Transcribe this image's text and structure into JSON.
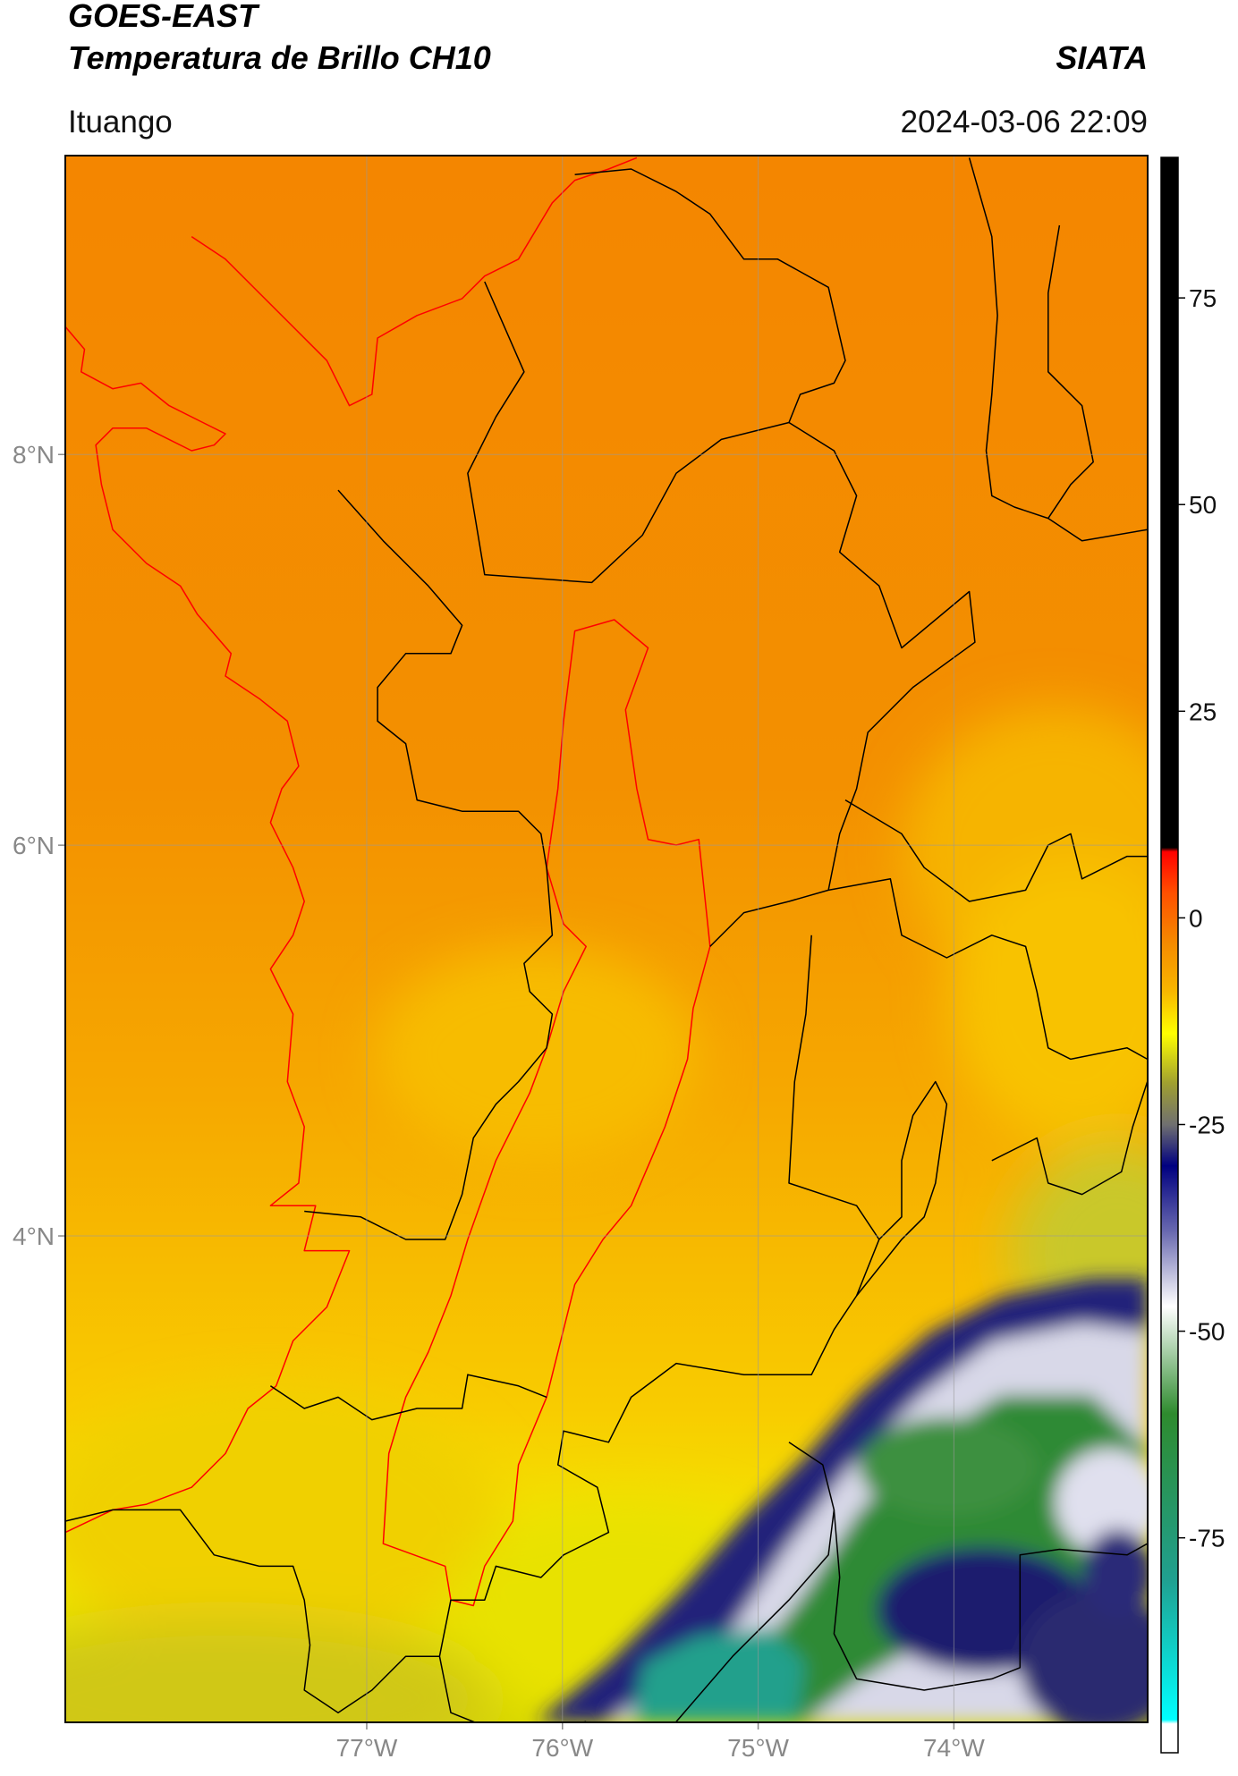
{
  "header": {
    "title_line1": "GOES-EAST",
    "title_line2": "Temperatura de Brillo CH10",
    "source": "SIATA",
    "location": "Ituango",
    "timestamp": "2024-03-06 22:09"
  },
  "map": {
    "xlim": [
      -78.54,
      -73.01
    ],
    "ylim": [
      1.51,
      9.53
    ],
    "xticks": [
      {
        "value": -77,
        "label": "77°W"
      },
      {
        "value": -76,
        "label": "76°W"
      },
      {
        "value": -75,
        "label": "75°W"
      },
      {
        "value": -74,
        "label": "74°W"
      }
    ],
    "yticks": [
      {
        "value": 8,
        "label": "8°N"
      },
      {
        "value": 6,
        "label": "6°N"
      },
      {
        "value": 4,
        "label": "4°N"
      }
    ],
    "grid": true
  },
  "colorbar": {
    "lim": [
      -101,
      92
    ],
    "ticks": [
      75,
      50,
      25,
      0,
      -25,
      -50,
      -75
    ],
    "stops": [
      {
        "value": 92,
        "color": "#000000"
      },
      {
        "value": 8.5,
        "color": "#000000"
      },
      {
        "value": 8,
        "color": "#ff0000"
      },
      {
        "value": 3,
        "color": "#ff5000"
      },
      {
        "value": -3,
        "color": "#f58a00"
      },
      {
        "value": -9,
        "color": "#f8b800"
      },
      {
        "value": -14,
        "color": "#ffff00"
      },
      {
        "value": -20,
        "color": "#a0a030"
      },
      {
        "value": -25,
        "color": "#707070"
      },
      {
        "value": -30,
        "color": "#000080"
      },
      {
        "value": -38,
        "color": "#6a6ab0"
      },
      {
        "value": -47,
        "color": "#ffffff"
      },
      {
        "value": -60,
        "color": "#2e8b2e"
      },
      {
        "value": -80,
        "color": "#20a090"
      },
      {
        "value": -97,
        "color": "#00ffff"
      },
      {
        "value": -97.5,
        "color": "#ffffff"
      },
      {
        "value": -101,
        "color": "#ffffff"
      }
    ]
  }
}
